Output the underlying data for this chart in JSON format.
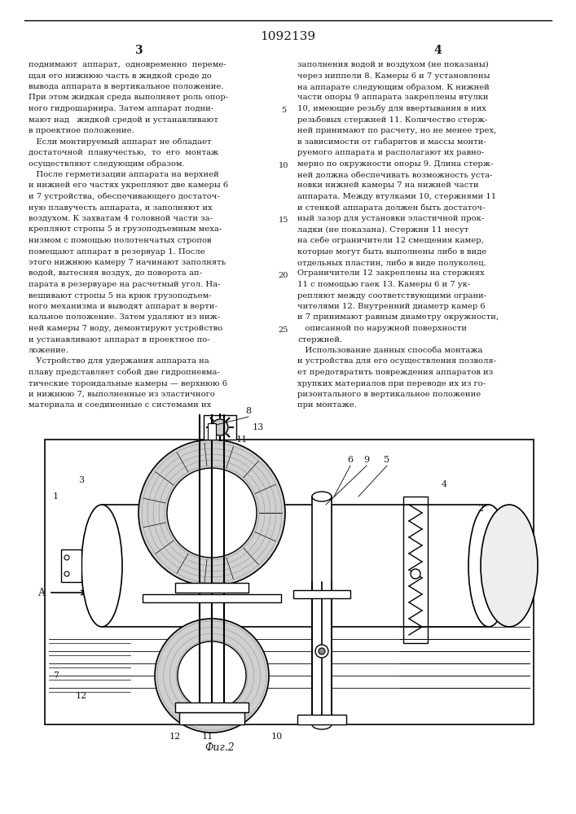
{
  "patent_number": "1092139",
  "col_numbers": [
    "3",
    "4"
  ],
  "background_color": "#f5f5f0",
  "text_color": "#1a1a1a",
  "line_color": "#1a1a1a",
  "fig_label": "Фиг.2",
  "arrow_label": "A",
  "col1_text": [
    "поднимают  аппарат,  одновременно  переме-",
    "щая его нижнюю часть в жидкой среде до",
    "вывода аппарата в вертикальное положение.",
    "При этом жидкая среда выполняет роль опор-",
    "ного гидрошарнира. Затем аппарат подни-",
    "мают над   жидкой средой и устанавливают",
    "в проектное положение.",
    "   Если монтируемый аппарат не обладает",
    "достаточной  плавучестью,  то  его  монтаж",
    "осуществляют следующим образом.",
    "   После герметизации аппарата на верхней",
    "и нижней его частях укрепляют две камеры 6",
    "и 7 устройства, обеспечивающего достаточ-",
    "ную плавучесть аппарата, и заполняют их",
    "воздухом. К захватам 4 головной части за-",
    "крепляют стропы 5 и грузоподъемным меха-",
    "низмом с помощью полотенчатых стропов",
    "помещают аппарат в резервуар 1. После",
    "этого нижнюю камеру 7 начинают заполнять",
    "водой, вытесняя воздух, до поворота ап-",
    "парата в резервуаре на расчетный угол. На-",
    "вешивают стропы 5 на крюк грузоподъем-",
    "ного механизма и выводят аппарат в верти-",
    "кальное положение. Затем удаляют из ниж-",
    "ней камеры 7 воду, демонтируют устройство",
    "и устанавливают аппарат в проектное по-",
    "ложение.",
    "   Устройство для удержания аппарата на",
    "плаву представляет собой две гидропневма-",
    "тические тороидальные камеры — верхнюю 6",
    "и нижнюю 7, выполненные из эластичного",
    "материала и соединенные с системами их"
  ],
  "col2_text": [
    "заполнения водой и воздухом (не показаны)",
    "через ниппели 8. Камеры 6 и 7 установлены",
    "на аппарате следующим образом. К нижней",
    "части опоры 9 аппарата закреплены втулки",
    "10, имеющие резьбу для ввертывания в них",
    "резьбовых стержней 11. Количество стерж-",
    "ней принимают по расчету, но не менее трех,",
    "в зависимости от габаритов и массы монти-",
    "руемого аппарата и располагают их равно-",
    "мерно по окружности опоры 9. Длина стерж-",
    "ней должна обеспечивать возможность уста-",
    "новки нижней камеры 7 на нижней части",
    "аппарата. Между втулками 10, стержнями 11",
    "и стенкой аппарата должен быть достаточ-",
    "ный зазор для установки эластичной прок-",
    "ладки (не показана). Стержни 11 несут",
    "на себе ограничители 12 смещения камер,",
    "которые могут быть выполнены либо в виде",
    "отдельных пластин, либо в виде полуколец.",
    "Ограничители 12 закреплены на стержнях",
    "11 с помощью гаек 13. Камеры 6 и 7 ук-",
    "репляют между соответствующими ограни-",
    "чителями 12. Внутренний диаметр камер 6",
    "и 7 принимают равным диаметру окружности,",
    "   описанной по наружной поверхности",
    "стержней.",
    "   Использование данных способа монтажа",
    "и устройства для его осуществления позволя-",
    "ет предотвратить повреждения аппаратов из",
    "хрупких материалов при переводе их из го-",
    "ризонтального в вертикальное положение",
    "при монтаже."
  ],
  "line_numbers_left": [
    "5",
    "10",
    "15",
    "20",
    "25"
  ]
}
